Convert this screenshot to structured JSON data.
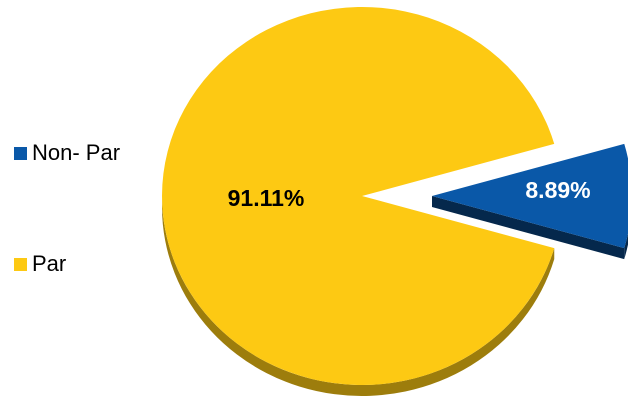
{
  "chart_data": {
    "type": "pie",
    "title": "",
    "legend_position": "left",
    "slices": [
      {
        "name": "Non- Par",
        "value": 8.89,
        "label": "8.89%",
        "color": "#0a58a8",
        "label_color": "#ffffff"
      },
      {
        "name": "Par",
        "value": 91.11,
        "label": "91.11%",
        "color": "#fdc913",
        "label_color": "#000000"
      }
    ]
  }
}
